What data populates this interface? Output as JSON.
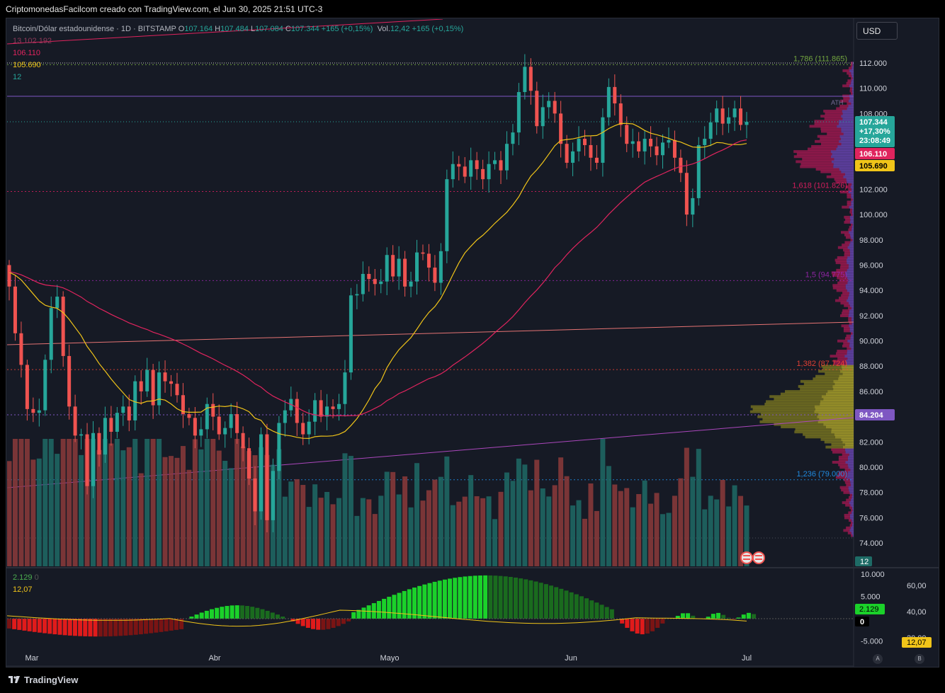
{
  "header": {
    "caption": "CriptomonedasFacilcom creado con TradingView.com, el Jun 30, 2025 21:51 UTC-3"
  },
  "legend": {
    "symbol": "Bitcoin/Dólar estadounidense · 1D · BITSTAMP",
    "open_label": "O",
    "open": "107.164",
    "high_label": "H",
    "high": "107.484",
    "low_label": "L",
    "low": "107.084",
    "close_label": "C",
    "close": "107.344",
    "change": "+165 (+0,15%)",
    "vol_label": "Vol.",
    "vol": "12,42",
    "vol_change": "+165 (+0,15%)",
    "ind_1": "13 102 192",
    "ind_2": "106.110",
    "ind_3": "105.690",
    "ind_4": "12",
    "osc_1": "2.129",
    "osc_1_suffix": "0",
    "osc_2": "12,07"
  },
  "currency_button": "USD",
  "branding": "TradingView",
  "scale_buttons": [
    "A",
    "B"
  ],
  "price_tags": {
    "last_price": "107.344",
    "last_change": "+17,30%",
    "countdown": "23:08:49",
    "ma_pink": "106.110",
    "ma_yellow": "105.690",
    "poc": "84.204",
    "vol_tag": "12",
    "osc_tag": "2.129",
    "osc_zero": "0",
    "rsi_tag": "12,07"
  },
  "fib_levels": [
    {
      "label": "1,786 (111.865)",
      "value": 111865,
      "color": "#7cb342"
    },
    {
      "label": "1,618 (101.826)",
      "value": 101826,
      "color": "#e91e63"
    },
    {
      "label": "1,5 (94.775)",
      "value": 94775,
      "color": "#9c27b0"
    },
    {
      "label": "1,382 (87.724)",
      "value": 87724,
      "color": "#f44336"
    },
    {
      "label": "1,236 (79.000)",
      "value": 79000,
      "color": "#2196f3"
    }
  ],
  "ath_label": "ATH",
  "colors": {
    "up": "#26a69a",
    "down": "#ef5350",
    "ma_yellow": "#f0c419",
    "ma_pink": "#e0245e",
    "poc": "#7e57c2"
  },
  "chart_data": [
    {
      "type": "candlestick",
      "title": "",
      "x": [
        "Mar",
        "Abr",
        "Mayo",
        "Jun",
        "Jul"
      ],
      "ylim": [
        74000,
        112000
      ],
      "y_ticks": [
        "112.000",
        "110.000",
        "108.000",
        "106.000",
        "104.000",
        "102.000",
        "100.000",
        "98.000",
        "96.000",
        "94.000",
        "92.000",
        "90.000",
        "88.000",
        "86.000",
        "84.000",
        "82.000",
        "80.000",
        "78.000",
        "76.000",
        "74.000"
      ],
      "closes": [
        94300,
        90600,
        88100,
        84600,
        84300,
        84500,
        88500,
        92600,
        93500,
        88800,
        84800,
        82500,
        82600,
        78500,
        82700,
        81000,
        83900,
        82800,
        84300,
        84800,
        83700,
        86800,
        86000,
        87700,
        84900,
        87500,
        86800,
        86600,
        85700,
        84200,
        83900,
        82500,
        83000,
        85000,
        84000,
        82600,
        83100,
        84200,
        82700,
        81500,
        79100,
        76500,
        82600,
        75800,
        79700,
        83500,
        84500,
        85400,
        83500,
        82600,
        83600,
        85300,
        84000,
        84800,
        84600,
        85000,
        87500,
        93600,
        93700,
        95300,
        94900,
        94500,
        94700,
        96800,
        95100,
        96500,
        94300,
        94700,
        97000,
        96900,
        95800,
        94600,
        97100,
        102800,
        104000,
        103800,
        103000,
        104300,
        103600,
        102800,
        104000,
        104300,
        103500,
        105600,
        106500,
        109700,
        111700,
        109800,
        107000,
        108500,
        109000,
        108000,
        105600,
        104100,
        105000,
        106000,
        105500,
        104500,
        104100,
        107700,
        110100,
        108800,
        107100,
        105600,
        105800,
        105000,
        106000,
        105400,
        104700,
        105700,
        105900,
        104500,
        103300,
        100000,
        101300,
        105500,
        106000,
        107300,
        108400,
        107200,
        107700,
        108400,
        107100,
        107344
      ],
      "volume_max_label": "12",
      "sma_yellow_last": 105690,
      "sma_pink_last": 106110,
      "volume_profile_poc": 84204
    },
    {
      "type": "bar",
      "title": "",
      "y_ticks": [
        "10.000",
        "5.000",
        "0",
        "-5.000"
      ],
      "right_ticks": [
        "60,00",
        "40,00",
        "20,00"
      ],
      "last_value": 2129,
      "line_last_value": 12.07
    }
  ]
}
